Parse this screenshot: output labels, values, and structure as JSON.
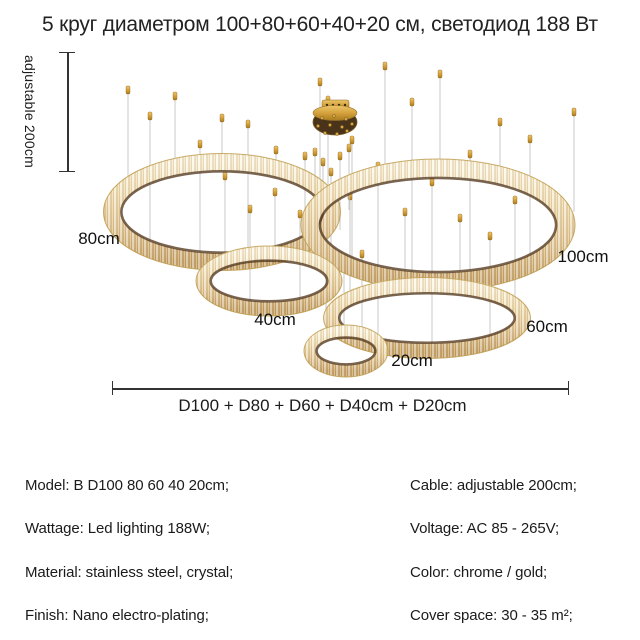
{
  "title": "5 круг диаметром 100+80+60+40+20 см, светодиод 188 Вт",
  "figure": {
    "height_dimension_label": "adjustable 200cm",
    "width_formula": "D100 + D80 + D60 + D40cm + D20cm",
    "ring_labels": {
      "r80": "80cm",
      "r100": "100cm",
      "r40": "40cm",
      "r60": "60cm",
      "r20": "20cm"
    }
  },
  "specs": {
    "left": [
      "Model: B D100 80 60 40 20cm;",
      "Wattage: Led lighting 188W;",
      "Material: stainless steel, crystal;",
      "Finish: Nano electro-plating;"
    ],
    "right": [
      "Cable: adjustable 200cm;",
      "Voltage: AC 85 - 265V;",
      "Color: chrome / gold;",
      "Cover space: 30 - 35 m²;"
    ]
  },
  "colors": {
    "gold": "#c99a3f",
    "crystal_light": "#f8f0d2",
    "crystal_dark": "#b9914f",
    "dark_rim": "#53391f",
    "wire": "#c9c9c9",
    "text": "#1c1c1c"
  }
}
